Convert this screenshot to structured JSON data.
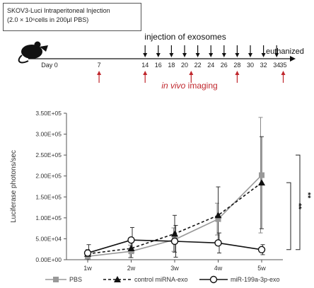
{
  "header": {
    "box_line1": "SKOV3-Luci Intraperitoneal Injection",
    "box_line2": "(2.0 × 10⁶cells in 200μl PBS)"
  },
  "timeline": {
    "days": [
      "Day 0",
      "7",
      "14",
      "16",
      "18",
      "20",
      "22",
      "24",
      "26",
      "28",
      "30",
      "32",
      "34",
      "35"
    ],
    "injection_days": [
      "14",
      "16",
      "18",
      "20",
      "22",
      "24",
      "26",
      "28",
      "30",
      "32",
      "34"
    ],
    "imaging_days": [
      "7",
      "14",
      "21",
      "28",
      "35"
    ],
    "injection_label": "injection of exosomes",
    "imaging_label_italic": "in vivo",
    "imaging_label_rest": " imaging",
    "end_label": "euthanized",
    "mouse_icon": "mouse-icon",
    "injection_color": "#111111",
    "imaging_color": "#c0272d"
  },
  "chart_data": {
    "type": "line",
    "categories": [
      "1w",
      "2w",
      "3w",
      "4w",
      "5w"
    ],
    "ylabel": "Luciferase photons/sec",
    "ylim": [
      0,
      350000
    ],
    "yticks": [
      "0.00E+00",
      "5.00E+04",
      "1.00E+05",
      "1.50E+05",
      "2.00E+05",
      "2.50E+05",
      "3.00E+05",
      "3.50E+05"
    ],
    "series": [
      {
        "name": "PBS",
        "values": [
          8000,
          20000,
          48000,
          97000,
          202000
        ],
        "errors": [
          7000,
          15000,
          28000,
          38000,
          138000
        ],
        "color": "#999999",
        "style": "solid",
        "marker": "square"
      },
      {
        "name": "control miRNA-exo",
        "values": [
          14000,
          27000,
          62000,
          106000,
          184000
        ],
        "errors": [
          10000,
          22000,
          44000,
          68000,
          110000
        ],
        "color": "#111111",
        "style": "dashed",
        "marker": "triangle"
      },
      {
        "name": "miR-199a-3p-exo",
        "values": [
          16000,
          47000,
          44000,
          40000,
          24000
        ],
        "errors": [
          20000,
          30000,
          38000,
          24000,
          12000
        ],
        "color": "#111111",
        "style": "solid",
        "marker": "open-circle"
      }
    ],
    "significance": [
      "**",
      "**"
    ]
  }
}
